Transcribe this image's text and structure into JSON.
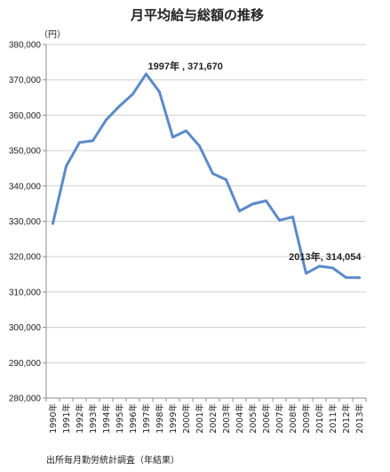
{
  "chart_data": {
    "type": "line",
    "title": "月平均給与総額の推移",
    "unit_label": "（円）",
    "source_note": "出所毎月勤労統計調査（年結果）",
    "ylim": [
      280000,
      380000
    ],
    "y_ticks": [
      280000,
      290000,
      300000,
      310000,
      320000,
      330000,
      340000,
      350000,
      360000,
      370000,
      380000
    ],
    "y_tick_labels": [
      "280,000",
      "290,000",
      "300,000",
      "310,000",
      "320,000",
      "330,000",
      "340,000",
      "350,000",
      "360,000",
      "370,000",
      "380,000"
    ],
    "grid": true,
    "line_color": "#5b8ac9",
    "categories": [
      "1990年",
      "1991年",
      "1992年",
      "1993年",
      "1994年",
      "1995年",
      "1996年",
      "1997年",
      "1998年",
      "1999年",
      "2000年",
      "2001年",
      "2002年",
      "2003年",
      "2004年",
      "2005年",
      "2006年",
      "2007年",
      "2008年",
      "2009年",
      "2010年",
      "2011年",
      "2012年",
      "2013年"
    ],
    "series": [
      {
        "values": [
          329400,
          345600,
          352300,
          352800,
          358700,
          362600,
          366000,
          371670,
          366600,
          353800,
          355600,
          351300,
          343500,
          341800,
          332900,
          334900,
          335800,
          330300,
          331200,
          315300,
          317300,
          316800,
          314100,
          314054
        ]
      }
    ],
    "annotations": [
      {
        "category_index": 7,
        "text": "1997年 , 371,670"
      },
      {
        "category_index": 23,
        "text": "2013年, 314,054"
      }
    ]
  }
}
